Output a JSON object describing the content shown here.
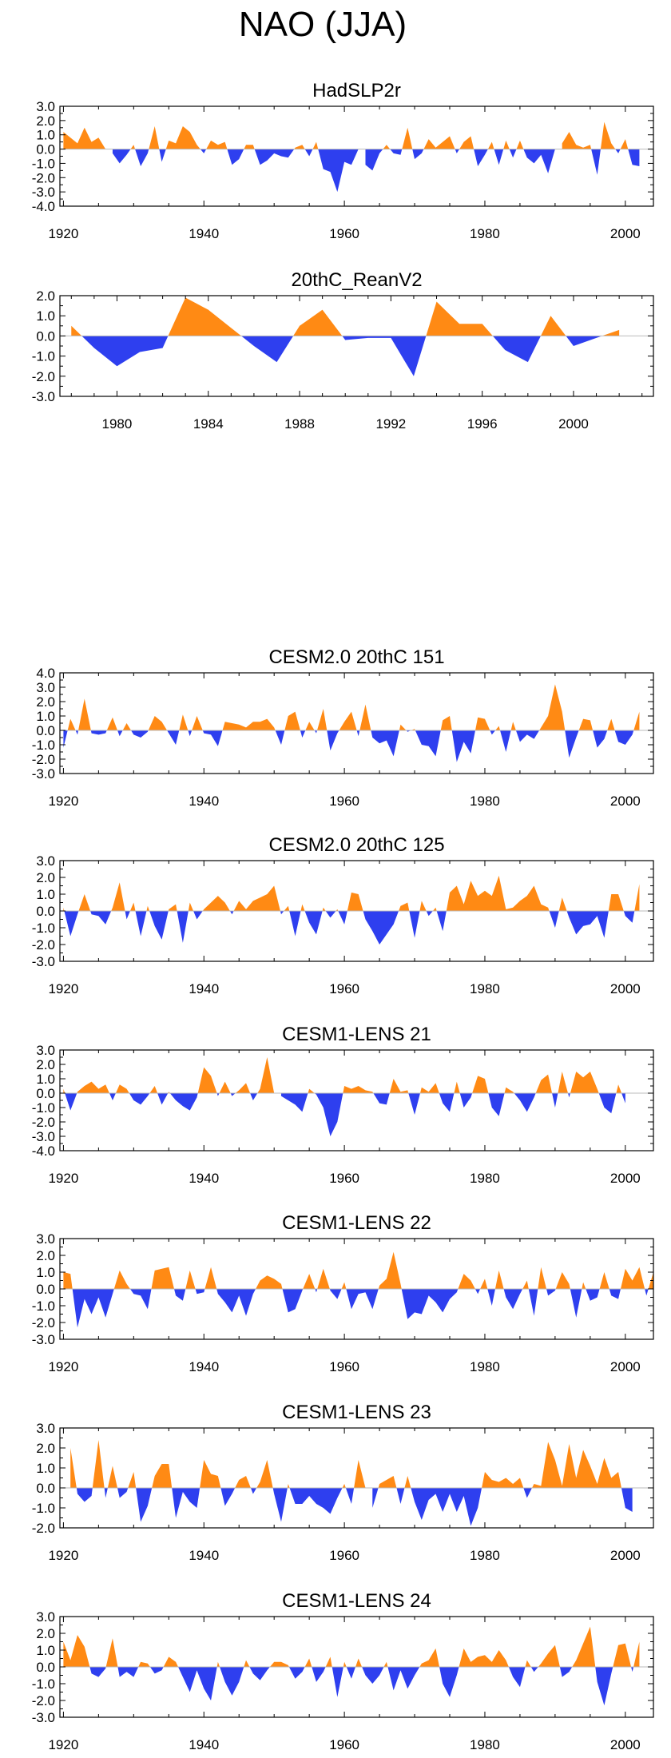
{
  "figure_title": "NAO (JJA)",
  "colors": {
    "positive": "#ff8a14",
    "negative": "#2e3fef",
    "axis": "#000000",
    "zero_line": "#bbbbbb"
  },
  "chart_data": [
    {
      "type": "area",
      "title": "HadSLP2r",
      "x_start": 1920,
      "x_end": 2002,
      "xlim": [
        1919.5,
        2004
      ],
      "ylim": [
        -4,
        3
      ],
      "xticks": [
        1920,
        1940,
        1960,
        1980,
        2000
      ],
      "xtick_labels": [
        "1920",
        "1940",
        "1960",
        "1980",
        "2000"
      ],
      "yticks": [
        3,
        2,
        1,
        0,
        -1,
        -2,
        -3,
        -4
      ],
      "ytick_labels": [
        "3.0",
        "2.0",
        "1.0",
        "0.0",
        "-1.0",
        "-2.0",
        "-3.0",
        "-4.0"
      ],
      "values": [
        1.2,
        0.8,
        0.4,
        1.5,
        0.5,
        0.8,
        0.0,
        -0.3,
        -1.0,
        -0.4,
        0.3,
        -1.2,
        -0.3,
        1.6,
        -0.9,
        0.6,
        0.4,
        1.6,
        1.2,
        0.3,
        -0.3,
        0.6,
        0.3,
        0.5,
        -1.1,
        -0.7,
        0.3,
        0.3,
        -1.1,
        -0.8,
        -0.3,
        -0.5,
        -0.6,
        0.1,
        0.3,
        -0.5,
        0.5,
        -1.4,
        -1.6,
        -3.0,
        -0.9,
        -1.1,
        0.0,
        -1.1,
        -1.5,
        -0.3,
        0.3,
        -0.3,
        -0.4,
        1.5,
        -0.7,
        -0.3,
        0.7,
        0.1,
        0.5,
        0.9,
        -0.3,
        0.5,
        0.9,
        -1.2,
        -0.4,
        0.5,
        -1.1,
        0.6,
        -0.6,
        0.6,
        -0.6,
        -1.0,
        -0.4,
        -1.7,
        0.0,
        0.4,
        1.2,
        0.3,
        0.1,
        0.3,
        -1.8,
        1.9,
        0.4,
        -0.3,
        0.7,
        -1.1,
        -1.2
      ]
    },
    {
      "type": "area",
      "title": "20thC_ReanV2",
      "x_start": 1978,
      "x_end": 2002,
      "xlim": [
        1977.5,
        2003.5
      ],
      "ylim": [
        -3,
        2
      ],
      "xticks": [
        1980,
        1984,
        1988,
        1992,
        1996,
        2000
      ],
      "xtick_labels": [
        "1980",
        "1984",
        "1988",
        "1992",
        "1996",
        "2000"
      ],
      "yticks": [
        2,
        1,
        0,
        -1,
        -2,
        -3
      ],
      "ytick_labels": [
        "2.0",
        "1.0",
        "0.0",
        "-1.0",
        "-2.0",
        "-3.0"
      ],
      "values": [
        0.5,
        -0.6,
        -1.5,
        -0.8,
        -0.6,
        1.9,
        1.3,
        0.4,
        -0.5,
        -1.3,
        0.5,
        1.3,
        -0.2,
        -0.1,
        -0.1,
        -2.0,
        1.7,
        0.6,
        0.6,
        -0.7,
        -1.3,
        1.0,
        -0.5,
        -0.1,
        0.3
      ]
    },
    {
      "type": "area",
      "title": "CESM2.0 20thC 151",
      "x_start": 1920,
      "x_end": 2002,
      "xlim": [
        1919.5,
        2004
      ],
      "ylim": [
        -3,
        4
      ],
      "xticks": [
        1920,
        1940,
        1960,
        1980,
        2000
      ],
      "xtick_labels": [
        "1920",
        "1940",
        "1960",
        "1980",
        "2000"
      ],
      "yticks": [
        4,
        3,
        2,
        1,
        0,
        -1,
        -2,
        -3
      ],
      "ytick_labels": [
        "4.0",
        "3.0",
        "2.0",
        "1.0",
        "0.0",
        "-1.0",
        "-2.0",
        "-3.0"
      ],
      "values": [
        -1.2,
        0.8,
        -0.3,
        2.2,
        -0.2,
        -0.3,
        -0.2,
        0.9,
        -0.4,
        0.5,
        -0.3,
        -0.5,
        -0.1,
        1.0,
        0.6,
        -0.2,
        -1.0,
        1.1,
        -0.4,
        1.0,
        -0.2,
        -0.3,
        -1.1,
        0.6,
        0.5,
        0.4,
        0.2,
        0.6,
        0.6,
        0.8,
        0.2,
        -1.0,
        1.0,
        1.3,
        -0.5,
        0.6,
        -0.2,
        1.5,
        -1.4,
        -0.2,
        0.6,
        1.3,
        -0.4,
        1.8,
        -0.5,
        -0.9,
        -0.7,
        -1.8,
        0.4,
        -0.1,
        0.1,
        -1.0,
        -1.1,
        -1.8,
        0.7,
        1.0,
        -2.2,
        -0.8,
        -1.6,
        0.9,
        0.8,
        -0.3,
        0.3,
        -1.5,
        0.6,
        -0.8,
        -0.3,
        -0.6,
        0.2,
        1.0,
        3.2,
        1.3,
        -1.9,
        -0.5,
        0.8,
        0.7,
        -1.2,
        -0.6,
        0.8,
        -0.8,
        -1.0,
        -0.3,
        1.3
      ]
    },
    {
      "type": "area",
      "title": "CESM2.0 20thC 125",
      "x_start": 1920,
      "x_end": 2002,
      "xlim": [
        1919.5,
        2004
      ],
      "ylim": [
        -3,
        3
      ],
      "xticks": [
        1920,
        1940,
        1960,
        1980,
        2000
      ],
      "xtick_labels": [
        "1920",
        "1940",
        "1960",
        "1980",
        "2000"
      ],
      "yticks": [
        3,
        2,
        1,
        0,
        -1,
        -2,
        -3
      ],
      "ytick_labels": [
        "3.0",
        "2.0",
        "1.0",
        "0.0",
        "-1.0",
        "-2.0",
        "-3.0"
      ],
      "values": [
        0.2,
        -1.5,
        -0.2,
        1.0,
        -0.2,
        -0.3,
        -0.8,
        0.2,
        1.7,
        -0.5,
        0.5,
        -1.5,
        0.3,
        -0.9,
        -1.7,
        0.1,
        0.4,
        -1.9,
        0.5,
        -0.5,
        0.1,
        0.5,
        0.9,
        0.5,
        -0.2,
        0.6,
        0.1,
        0.6,
        0.8,
        1.0,
        1.5,
        -0.2,
        0.3,
        -1.5,
        0.4,
        -0.7,
        -1.4,
        0.2,
        -0.4,
        0.1,
        -0.8,
        1.1,
        1.0,
        -0.5,
        -1.2,
        -2.0,
        -1.4,
        -0.8,
        0.3,
        0.5,
        -1.6,
        0.6,
        -0.3,
        0.2,
        -1.2,
        1.1,
        1.5,
        0.4,
        1.8,
        0.9,
        1.2,
        0.9,
        2.1,
        0.1,
        0.2,
        0.6,
        0.9,
        1.5,
        0.4,
        0.2,
        -1.0,
        0.8,
        -0.4,
        -1.4,
        -0.9,
        -0.8,
        -0.3,
        -1.6,
        1.0,
        1.0,
        -0.3,
        -0.7,
        1.6
      ]
    },
    {
      "type": "area",
      "title": "CESM1-LENS 21",
      "x_start": 1920,
      "x_end": 2002,
      "xlim": [
        1919.5,
        2004
      ],
      "ylim": [
        -4,
        3
      ],
      "xticks": [
        1920,
        1940,
        1960,
        1980,
        2000
      ],
      "xtick_labels": [
        "1920",
        "1940",
        "1960",
        "1980",
        "2000"
      ],
      "yticks": [
        3,
        2,
        1,
        0,
        -1,
        -2,
        -3,
        -4
      ],
      "ytick_labels": [
        "3.0",
        "2.0",
        "1.0",
        "0.0",
        "-1.0",
        "-2.0",
        "-3.0",
        "-4.0"
      ],
      "values": [
        0.3,
        -1.2,
        0.1,
        0.5,
        0.8,
        0.3,
        0.6,
        -0.5,
        0.6,
        0.3,
        -0.5,
        -0.8,
        -0.2,
        0.5,
        -0.8,
        0.1,
        -0.5,
        -0.9,
        -1.2,
        -0.3,
        1.8,
        1.2,
        -0.2,
        0.8,
        -0.2,
        0.2,
        0.7,
        -0.5,
        0.3,
        2.5,
        0.0,
        -0.2,
        -0.5,
        -0.8,
        -1.3,
        0.3,
        -0.1,
        -1.0,
        -3.0,
        -2.0,
        0.5,
        0.3,
        0.5,
        0.2,
        0.1,
        -0.7,
        -0.8,
        1.0,
        0.1,
        0.2,
        -1.5,
        0.4,
        0.1,
        0.7,
        -0.7,
        -1.3,
        0.8,
        -1.0,
        -0.3,
        1.2,
        1.0,
        -1.0,
        -1.6,
        0.4,
        0.1,
        -0.5,
        -1.3,
        -0.3,
        0.9,
        1.3,
        -1.0,
        1.5,
        -0.3,
        1.5,
        1.1,
        1.5,
        0.3,
        -1.0,
        -1.4,
        0.6,
        -0.7
      ]
    },
    {
      "type": "area",
      "title": "CESM1-LENS 22",
      "x_start": 1920,
      "x_end": 2002,
      "xlim": [
        1919.5,
        2004
      ],
      "ylim": [
        -3,
        3
      ],
      "xticks": [
        1920,
        1940,
        1960,
        1980,
        2000
      ],
      "xtick_labels": [
        "1920",
        "1940",
        "1960",
        "1980",
        "2000"
      ],
      "yticks": [
        3,
        2,
        1,
        0,
        -1,
        -2,
        -3
      ],
      "ytick_labels": [
        "3.0",
        "2.0",
        "1.0",
        "0.0",
        "-1.0",
        "-2.0",
        "-3.0"
      ],
      "values": [
        1.0,
        0.9,
        -2.3,
        -0.6,
        -1.5,
        -0.5,
        -1.7,
        -0.3,
        1.1,
        0.3,
        -0.3,
        -0.4,
        -1.2,
        1.1,
        1.2,
        1.3,
        -0.4,
        -0.7,
        1.1,
        -0.3,
        -0.2,
        1.3,
        -0.3,
        -0.8,
        -1.4,
        -0.4,
        -1.6,
        -0.3,
        0.5,
        0.8,
        0.6,
        0.3,
        -1.4,
        -1.2,
        -0.1,
        0.9,
        -0.2,
        1.2,
        -0.1,
        -0.6,
        0.4,
        -1.2,
        -0.3,
        -0.2,
        -1.2,
        0.2,
        0.6,
        2.2,
        0.3,
        -1.8,
        -1.4,
        -1.5,
        -0.4,
        -0.8,
        -1.4,
        -0.6,
        -0.2,
        0.9,
        0.5,
        -0.3,
        0.6,
        -1.0,
        1.1,
        -0.5,
        -1.2,
        -0.3,
        0.5,
        -1.6,
        1.3,
        -0.4,
        -0.1,
        1.0,
        0.3,
        -1.7,
        0.4,
        -0.7,
        -0.5,
        1.0,
        -0.4,
        -0.6,
        1.2,
        0.5,
        1.3,
        -0.4,
        1.0
      ]
    },
    {
      "type": "area",
      "title": "CESM1-LENS 23",
      "x_start": 1920,
      "x_end": 2002,
      "xlim": [
        1919.5,
        2004
      ],
      "ylim": [
        -2,
        3
      ],
      "xticks": [
        1920,
        1940,
        1960,
        1980,
        2000
      ],
      "xtick_labels": [
        "1920",
        "1940",
        "1960",
        "1980",
        "2000"
      ],
      "yticks": [
        3,
        2,
        1,
        0,
        -1,
        -2
      ],
      "ytick_labels": [
        "3.0",
        "2.0",
        "1.0",
        "0.0",
        "-1.0",
        "-2.0"
      ],
      "values": [
        0.0,
        2.0,
        -0.3,
        -0.7,
        -0.4,
        2.4,
        -0.5,
        1.1,
        -0.5,
        -0.2,
        0.8,
        -1.7,
        -0.9,
        0.6,
        1.2,
        1.2,
        -1.5,
        -0.2,
        -0.7,
        -1.0,
        1.4,
        0.7,
        0.6,
        -0.9,
        -0.3,
        0.4,
        0.6,
        -0.3,
        0.3,
        1.4,
        -0.3,
        -1.7,
        0.2,
        -0.8,
        -0.8,
        -0.4,
        -0.8,
        -1.0,
        -1.3,
        -0.5,
        0.2,
        -0.8,
        1.4,
        0.0,
        -1.0,
        0.2,
        0.4,
        0.6,
        -0.8,
        0.6,
        -0.7,
        -1.6,
        -0.6,
        -0.3,
        -1.2,
        -0.3,
        -1.2,
        -0.4,
        -1.9,
        -1.0,
        0.8,
        0.4,
        0.3,
        0.5,
        0.2,
        0.5,
        -0.5,
        0.2,
        0.1,
        2.3,
        1.4,
        0.1,
        2.2,
        0.5,
        1.9,
        1.1,
        0.2,
        1.5,
        0.5,
        0.8,
        -1.0,
        -1.2
      ]
    },
    {
      "type": "area",
      "title": "CESM1-LENS 24",
      "x_start": 1920,
      "x_end": 2002,
      "xlim": [
        1919.5,
        2004
      ],
      "ylim": [
        -3,
        3
      ],
      "xticks": [
        1920,
        1940,
        1960,
        1980,
        2000
      ],
      "xtick_labels": [
        "1920",
        "1940",
        "1960",
        "1980",
        "2000"
      ],
      "yticks": [
        3,
        2,
        1,
        0,
        -1,
        -2,
        -3
      ],
      "ytick_labels": [
        "3.0",
        "2.0",
        "1.0",
        "0.0",
        "-1.0",
        "-2.0",
        "-3.0"
      ],
      "values": [
        1.5,
        0.4,
        1.9,
        1.2,
        -0.4,
        -0.6,
        -0.1,
        1.7,
        -0.6,
        -0.3,
        -0.6,
        0.3,
        0.2,
        -0.4,
        -0.2,
        0.6,
        0.3,
        -0.6,
        -1.5,
        -0.2,
        -1.3,
        -2.0,
        0.3,
        -0.9,
        -1.7,
        -0.9,
        0.4,
        -0.4,
        -0.8,
        -0.2,
        0.3,
        0.3,
        0.1,
        -0.7,
        -0.3,
        0.5,
        -0.9,
        -0.3,
        0.6,
        -1.8,
        0.3,
        -0.7,
        0.5,
        -0.5,
        -1.0,
        -0.5,
        0.3,
        -1.4,
        -0.2,
        -1.3,
        -0.5,
        0.2,
        0.4,
        1.1,
        -1.0,
        -1.8,
        -0.5,
        1.1,
        0.3,
        0.6,
        0.7,
        0.3,
        1.0,
        0.4,
        -0.6,
        -1.2,
        0.4,
        -0.3,
        0.2,
        0.8,
        1.3,
        -0.6,
        -0.3,
        0.4,
        1.4,
        2.4,
        -0.9,
        -2.3,
        -0.4,
        1.3,
        1.4,
        -0.3,
        1.5
      ]
    }
  ]
}
